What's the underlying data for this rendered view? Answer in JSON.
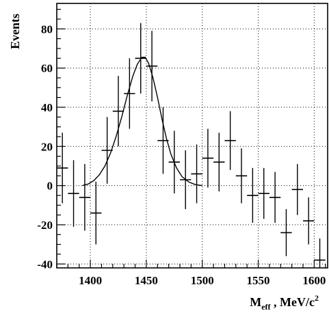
{
  "chart_data": {
    "type": "scatter",
    "ylabel": "Events",
    "xlabel": {
      "main": "M",
      "sub": "eff",
      "rest": " , MeV/c",
      "sup": "2"
    },
    "xlim": [
      1370,
      1612
    ],
    "ylim": [
      -42,
      93
    ],
    "grid": true,
    "x_ticks": [
      1400,
      1450,
      1500,
      1550,
      1600
    ],
    "y_ticks": [
      -40,
      -20,
      0,
      20,
      40,
      60,
      80
    ],
    "x_minor_step": 10,
    "y_minor_step": 5,
    "bin_half_width": 5,
    "points": [
      {
        "x": 1375,
        "y": 9,
        "err": 18
      },
      {
        "x": 1385,
        "y": -4,
        "err": 17
      },
      {
        "x": 1395,
        "y": -6,
        "err": 17
      },
      {
        "x": 1405,
        "y": -14,
        "err": 16
      },
      {
        "x": 1415,
        "y": 18,
        "err": 17
      },
      {
        "x": 1425,
        "y": 38,
        "err": 18
      },
      {
        "x": 1435,
        "y": 47,
        "err": 18
      },
      {
        "x": 1445,
        "y": 65,
        "err": 18
      },
      {
        "x": 1455,
        "y": 61,
        "err": 18
      },
      {
        "x": 1465,
        "y": 23,
        "err": 17
      },
      {
        "x": 1475,
        "y": 12,
        "err": 16
      },
      {
        "x": 1485,
        "y": 3,
        "err": 15
      },
      {
        "x": 1495,
        "y": 6,
        "err": 15
      },
      {
        "x": 1505,
        "y": 14,
        "err": 15
      },
      {
        "x": 1515,
        "y": 12,
        "err": 15
      },
      {
        "x": 1525,
        "y": 23,
        "err": 15
      },
      {
        "x": 1535,
        "y": 5,
        "err": 14
      },
      {
        "x": 1545,
        "y": -5,
        "err": 14
      },
      {
        "x": 1555,
        "y": -4,
        "err": 13
      },
      {
        "x": 1565,
        "y": -6,
        "err": 13
      },
      {
        "x": 1575,
        "y": -24,
        "err": 12
      },
      {
        "x": 1585,
        "y": -2,
        "err": 13
      },
      {
        "x": 1595,
        "y": -18,
        "err": 12
      },
      {
        "x": 1605,
        "y": -38,
        "err": 11
      }
    ],
    "fit_curve": [
      {
        "x": 1393,
        "y": 0
      },
      {
        "x": 1398,
        "y": 0.8
      },
      {
        "x": 1403,
        "y": 2.5
      },
      {
        "x": 1408,
        "y": 5.5
      },
      {
        "x": 1413,
        "y": 10
      },
      {
        "x": 1418,
        "y": 16.5
      },
      {
        "x": 1423,
        "y": 25
      },
      {
        "x": 1428,
        "y": 35
      },
      {
        "x": 1433,
        "y": 46
      },
      {
        "x": 1438,
        "y": 56
      },
      {
        "x": 1442,
        "y": 62
      },
      {
        "x": 1446,
        "y": 65.5
      },
      {
        "x": 1449,
        "y": 65.5
      },
      {
        "x": 1452,
        "y": 62.5
      },
      {
        "x": 1456,
        "y": 55
      },
      {
        "x": 1460,
        "y": 45
      },
      {
        "x": 1464,
        "y": 34
      },
      {
        "x": 1468,
        "y": 24
      },
      {
        "x": 1472,
        "y": 16
      },
      {
        "x": 1477,
        "y": 9
      },
      {
        "x": 1482,
        "y": 4.5
      },
      {
        "x": 1488,
        "y": 1.8
      },
      {
        "x": 1494,
        "y": 0.5
      },
      {
        "x": 1500,
        "y": 0
      }
    ]
  }
}
